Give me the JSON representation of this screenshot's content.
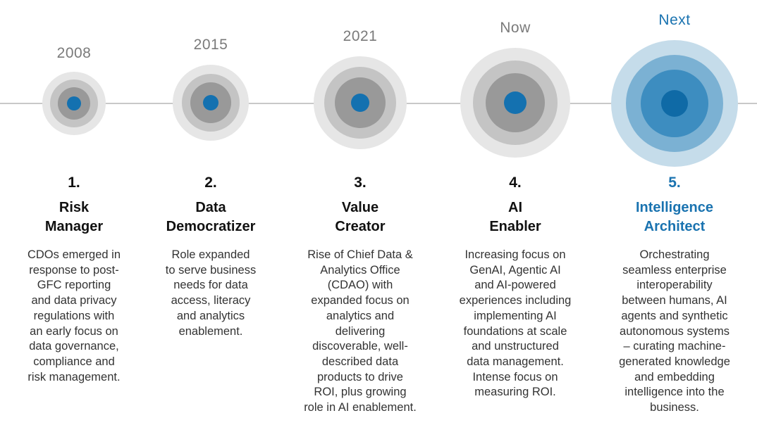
{
  "stages": [
    {
      "year": "2008",
      "number": "1.",
      "title_line1": "Risk",
      "title_line2": "Manager",
      "description": [
        "CDOs emerged in",
        "response to post-",
        "GFC reporting",
        "and data privacy",
        "regulations with",
        "an early focus on",
        "data governance,",
        "compliance and",
        "risk management."
      ]
    },
    {
      "year": "2015",
      "number": "2.",
      "title_line1": "Data",
      "title_line2": "Democratizer",
      "description": [
        "Role expanded",
        "to serve business",
        "needs for data",
        "access, literacy",
        "and analytics",
        "enablement."
      ]
    },
    {
      "year": "2021",
      "number": "3.",
      "title_line1": "Value",
      "title_line2": "Creator",
      "description": [
        "Rise of Chief Data &",
        "Analytics Office",
        "(CDAO) with",
        "expanded focus on",
        "analytics and",
        "delivering",
        "discoverable, well-",
        "described data",
        "products to drive",
        "ROI, plus growing",
        "role in AI enablement."
      ]
    },
    {
      "year": "Now",
      "number": "4.",
      "title_line1": "AI",
      "title_line2": "Enabler",
      "description": [
        "Increasing focus on",
        "GenAI, Agentic AI",
        "and AI-powered",
        "experiences including",
        "implementing AI",
        "foundations at scale",
        "and unstructured",
        "data management.",
        "Intense focus on",
        "measuring ROI."
      ]
    },
    {
      "year": "Next",
      "number": "5.",
      "title_line1": "Intelligence",
      "title_line2": "Architect",
      "description": [
        "Orchestrating",
        "seamless enterprise",
        "interoperability",
        "between humans, AI",
        "agents and synthetic",
        "autonomous systems",
        "– curating machine-",
        "generated knowledge",
        "and embedding",
        "intelligence into the",
        "business."
      ]
    }
  ],
  "colors": {
    "ring_outer": "#e6e6e6",
    "ring_mid": "#c4c4c4",
    "ring_inner": "#999999",
    "core": "#1471b0",
    "next_outer": "#c5dcea",
    "next_mid": "#7bb1d3",
    "next_inner": "#3d8dc0",
    "next_core": "#0f6aa6",
    "accent_text": "#1a73b0"
  }
}
